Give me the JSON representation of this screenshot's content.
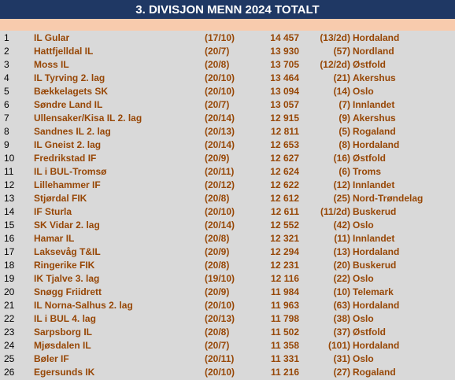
{
  "header": {
    "title": "3. DIVISJON MENN 2024 TOTALT"
  },
  "table": {
    "rows": [
      [
        "1",
        "IL Gular",
        "(17/10)",
        "14 457",
        "(13/2d)",
        "Hordaland"
      ],
      [
        "2",
        "Hattfjelldal IL",
        "(20/7)",
        "13 930",
        "(57)",
        "Nordland"
      ],
      [
        "3",
        "Moss IL",
        "(20/8)",
        "13 705",
        "(12/2d)",
        "Østfold"
      ],
      [
        "4",
        "IL Tyrving 2. lag",
        "(20/10)",
        "13 464",
        "(21)",
        "Akershus"
      ],
      [
        "5",
        "Bækkelagets SK",
        "(20/10)",
        "13 094",
        "(14)",
        "Oslo"
      ],
      [
        "6",
        "Søndre Land IL",
        "(20/7)",
        "13 057",
        "(7)",
        "Innlandet"
      ],
      [
        "7",
        "Ullensaker/Kisa IL 2. lag",
        "(20/14)",
        "12 915",
        "(9)",
        "Akershus"
      ],
      [
        "8",
        "Sandnes IL 2. lag",
        "(20/13)",
        "12 811",
        "(5)",
        "Rogaland"
      ],
      [
        "9",
        "IL Gneist 2. lag",
        "(20/14)",
        "12 653",
        "(8)",
        "Hordaland"
      ],
      [
        "10",
        "Fredrikstad IF",
        "(20/9)",
        "12 627",
        "(16)",
        "Østfold"
      ],
      [
        "11",
        "IL i BUL-Tromsø",
        "(20/11)",
        "12 624",
        "(6)",
        "Troms"
      ],
      [
        "12",
        "Lillehammer IF",
        "(20/12)",
        "12 622",
        "(12)",
        "Innlandet"
      ],
      [
        "13",
        "Stjørdal FIK",
        "(20/8)",
        "12 612",
        "(25)",
        "Nord-Trøndelag"
      ],
      [
        "14",
        "IF Sturla",
        "(20/10)",
        "12 611",
        "(11/2d)",
        "Buskerud"
      ],
      [
        "15",
        "SK Vidar 2. lag",
        "(20/14)",
        "12 552",
        "(42)",
        "Oslo"
      ],
      [
        "16",
        "Hamar IL",
        "(20/8)",
        "12 321",
        "(11)",
        "Innlandet"
      ],
      [
        "17",
        "Laksevåg T&IL",
        "(20/9)",
        "12 294",
        "(13)",
        "Hordaland"
      ],
      [
        "18",
        "Ringerike FIK",
        "(20/8)",
        "12 231",
        "(20)",
        "Buskerud"
      ],
      [
        "19",
        "IK Tjalve 3. lag",
        "(19/10)",
        "12 116",
        "(22)",
        "Oslo"
      ],
      [
        "20",
        "Snøgg Friidrett",
        "(20/9)",
        "11 984",
        "(10)",
        "Telemark"
      ],
      [
        "21",
        "IL Norna-Salhus 2. lag",
        "(20/10)",
        "11 963",
        "(63)",
        "Hordaland"
      ],
      [
        "22",
        "IL i BUL 4. lag",
        "(20/13)",
        "11 798",
        "(38)",
        "Oslo"
      ],
      [
        "23",
        "Sarpsborg IL",
        "(20/8)",
        "11 502",
        "(37)",
        "Østfold"
      ],
      [
        "24",
        "Mjøsdalen IL",
        "(20/7)",
        "11 358",
        "(101)",
        "Hordaland"
      ],
      [
        "25",
        "Bøler IF",
        "(20/11)",
        "11 331",
        "(31)",
        "Oslo"
      ],
      [
        "26",
        "Egersunds IK",
        "(20/10)",
        "11 216",
        "(27)",
        "Rogaland"
      ]
    ]
  }
}
